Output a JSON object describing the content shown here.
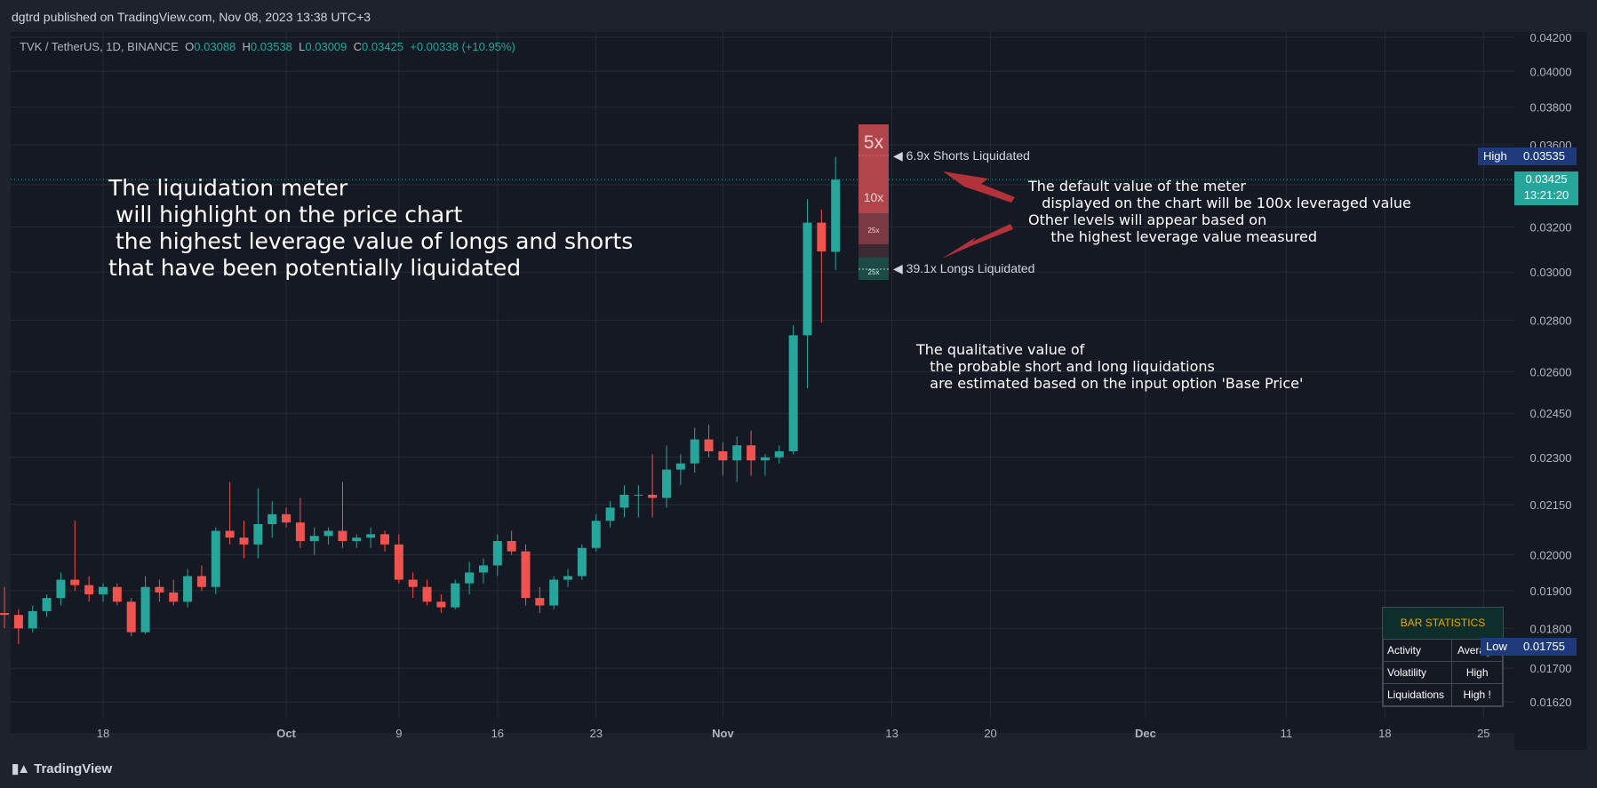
{
  "header": {
    "published": "dgtrd published on TradingView.com, Nov 08, 2023 13:38 UTC+3"
  },
  "footer": {
    "brand": "TradingView",
    "logo_icon": "tradingview-logo-icon"
  },
  "ohlc": {
    "symbol": "TVK / TetherUS, 1D, BINANCE",
    "o_label": "O",
    "o": "0.03088",
    "h_label": "H",
    "h": "0.03538",
    "l_label": "L",
    "l": "0.03009",
    "c_label": "C",
    "c": "0.03425",
    "change": "+0.00338 (+10.95%)"
  },
  "annotations": {
    "main": "The liquidation meter\n will highlight on the price chart\n the highest leverage value of longs and shorts\nthat have been potentially liquidated",
    "default_value": "The default value of the meter\n   displayed on the chart will be 100x leveraged value\nOther levels will appear based on\n     the highest leverage value measured",
    "qualitative": "The qualitative value of\n   the probable short and long liquidations\n   are estimated based on the input option 'Base Price'"
  },
  "meter": {
    "top_label": "5x",
    "mid_label": "10x",
    "small_label_1": "25x",
    "small_label_2": "25x",
    "shorts": "◀ 6.9x Shorts Liquidated",
    "longs": "◀ 39.1x Longs Liquidated"
  },
  "price_tags": {
    "high_label": "High",
    "high_value": "0.03535",
    "last_value": "0.03425",
    "countdown": "13:21:20",
    "low_label": "Low",
    "low_value": "0.01755"
  },
  "bar_statistics": {
    "title": "BAR STATISTICS",
    "rows": [
      {
        "label": "Activity",
        "value": "Average"
      },
      {
        "label": "Volatility",
        "value": "High"
      },
      {
        "label": "Liquidations",
        "value": "High !"
      }
    ]
  },
  "colors": {
    "up": "#26a69a",
    "down": "#ef5350",
    "axis_text": "#b2b5be",
    "grid": "#262a35",
    "meter_red": "#b2444b",
    "high_tag": "#1e3a7a",
    "last_tag": "#26a69a"
  },
  "chart_data": {
    "type": "candlestick",
    "title": "",
    "y_scale": "log",
    "y_ticks": [
      0.0162,
      0.017,
      0.018,
      0.019,
      0.02,
      0.0215,
      0.023,
      0.0245,
      0.026,
      0.028,
      0.03,
      0.032,
      0.034,
      0.036,
      0.038,
      0.04,
      0.042
    ],
    "y_tick_labels": [
      "0.01620",
      "0.01700",
      "0.01800",
      "0.01900",
      "0.02000",
      "0.02150",
      "0.02300",
      "0.02450",
      "0.02600",
      "0.02800",
      "0.03000",
      "0.03200",
      "0.03400",
      "0.03600",
      "0.03800",
      "0.04000",
      "0.04200"
    ],
    "x_tick_labels": [
      "18",
      "Oct",
      "9",
      "16",
      "23",
      "Nov",
      "13",
      "20",
      "Dec",
      "11",
      "18",
      "25"
    ],
    "x_tick_dates": [
      "2023-09-18",
      "2023-10-01",
      "2023-10-09",
      "2023-10-16",
      "2023-10-23",
      "2023-11-01",
      "2023-11-13",
      "2023-11-20",
      "2023-12-01",
      "2023-12-11",
      "2023-12-18",
      "2023-12-25"
    ],
    "candles": [
      {
        "d": "2023-09-11",
        "o": 0.0184,
        "h": 0.0191,
        "l": 0.018,
        "c": 0.01835
      },
      {
        "d": "2023-09-12",
        "o": 0.01835,
        "h": 0.0185,
        "l": 0.0176,
        "c": 0.018
      },
      {
        "d": "2023-09-13",
        "o": 0.018,
        "h": 0.0186,
        "l": 0.0179,
        "c": 0.01845
      },
      {
        "d": "2023-09-14",
        "o": 0.01845,
        "h": 0.0189,
        "l": 0.0183,
        "c": 0.0188
      },
      {
        "d": "2023-09-15",
        "o": 0.0188,
        "h": 0.0195,
        "l": 0.0186,
        "c": 0.0193
      },
      {
        "d": "2023-09-16",
        "o": 0.0193,
        "h": 0.021,
        "l": 0.019,
        "c": 0.01915
      },
      {
        "d": "2023-09-17",
        "o": 0.01915,
        "h": 0.0194,
        "l": 0.0187,
        "c": 0.0189
      },
      {
        "d": "2023-09-18",
        "o": 0.0189,
        "h": 0.0192,
        "l": 0.0187,
        "c": 0.0191
      },
      {
        "d": "2023-09-19",
        "o": 0.0191,
        "h": 0.0192,
        "l": 0.0186,
        "c": 0.0187
      },
      {
        "d": "2023-09-20",
        "o": 0.0187,
        "h": 0.0188,
        "l": 0.0178,
        "c": 0.0179
      },
      {
        "d": "2023-09-21",
        "o": 0.0179,
        "h": 0.0194,
        "l": 0.01785,
        "c": 0.0191
      },
      {
        "d": "2023-09-22",
        "o": 0.0191,
        "h": 0.0193,
        "l": 0.0187,
        "c": 0.01895
      },
      {
        "d": "2023-09-23",
        "o": 0.01895,
        "h": 0.0193,
        "l": 0.0186,
        "c": 0.0187
      },
      {
        "d": "2023-09-24",
        "o": 0.0187,
        "h": 0.0196,
        "l": 0.01855,
        "c": 0.0194
      },
      {
        "d": "2023-09-25",
        "o": 0.0194,
        "h": 0.0197,
        "l": 0.019,
        "c": 0.0191
      },
      {
        "d": "2023-09-26",
        "o": 0.0191,
        "h": 0.0208,
        "l": 0.0189,
        "c": 0.0207
      },
      {
        "d": "2023-09-27",
        "o": 0.0207,
        "h": 0.0222,
        "l": 0.0203,
        "c": 0.0205
      },
      {
        "d": "2023-09-28",
        "o": 0.0205,
        "h": 0.021,
        "l": 0.0199,
        "c": 0.0203
      },
      {
        "d": "2023-09-29",
        "o": 0.0203,
        "h": 0.022,
        "l": 0.0199,
        "c": 0.0209
      },
      {
        "d": "2023-09-30",
        "o": 0.0209,
        "h": 0.0216,
        "l": 0.0205,
        "c": 0.0212
      },
      {
        "d": "2023-10-01",
        "o": 0.0212,
        "h": 0.0214,
        "l": 0.0208,
        "c": 0.02095
      },
      {
        "d": "2023-10-02",
        "o": 0.02095,
        "h": 0.0217,
        "l": 0.0202,
        "c": 0.0204
      },
      {
        "d": "2023-10-03",
        "o": 0.0204,
        "h": 0.0208,
        "l": 0.02,
        "c": 0.02055
      },
      {
        "d": "2023-10-04",
        "o": 0.02055,
        "h": 0.0208,
        "l": 0.0203,
        "c": 0.0207
      },
      {
        "d": "2023-10-05",
        "o": 0.0207,
        "h": 0.0222,
        "l": 0.0202,
        "c": 0.0204
      },
      {
        "d": "2023-10-06",
        "o": 0.0204,
        "h": 0.0206,
        "l": 0.0202,
        "c": 0.0205
      },
      {
        "d": "2023-10-07",
        "o": 0.0205,
        "h": 0.0208,
        "l": 0.0202,
        "c": 0.0206
      },
      {
        "d": "2023-10-08",
        "o": 0.0206,
        "h": 0.0207,
        "l": 0.0201,
        "c": 0.0203
      },
      {
        "d": "2023-10-09",
        "o": 0.0203,
        "h": 0.0206,
        "l": 0.0192,
        "c": 0.0193
      },
      {
        "d": "2023-10-10",
        "o": 0.0193,
        "h": 0.0195,
        "l": 0.0188,
        "c": 0.0191
      },
      {
        "d": "2023-10-11",
        "o": 0.0191,
        "h": 0.0193,
        "l": 0.0186,
        "c": 0.0187
      },
      {
        "d": "2023-10-12",
        "o": 0.0187,
        "h": 0.0189,
        "l": 0.0184,
        "c": 0.01855
      },
      {
        "d": "2023-10-13",
        "o": 0.01855,
        "h": 0.0193,
        "l": 0.0185,
        "c": 0.0192
      },
      {
        "d": "2023-10-14",
        "o": 0.0192,
        "h": 0.0198,
        "l": 0.0189,
        "c": 0.0195
      },
      {
        "d": "2023-10-15",
        "o": 0.0195,
        "h": 0.0199,
        "l": 0.0192,
        "c": 0.0197
      },
      {
        "d": "2023-10-16",
        "o": 0.0197,
        "h": 0.0206,
        "l": 0.0194,
        "c": 0.0204
      },
      {
        "d": "2023-10-17",
        "o": 0.0204,
        "h": 0.0207,
        "l": 0.02,
        "c": 0.0201
      },
      {
        "d": "2023-10-18",
        "o": 0.0201,
        "h": 0.0203,
        "l": 0.0186,
        "c": 0.0188
      },
      {
        "d": "2023-10-19",
        "o": 0.0188,
        "h": 0.0191,
        "l": 0.0184,
        "c": 0.0186
      },
      {
        "d": "2023-10-20",
        "o": 0.0186,
        "h": 0.0194,
        "l": 0.0185,
        "c": 0.0193
      },
      {
        "d": "2023-10-21",
        "o": 0.0193,
        "h": 0.0196,
        "l": 0.0191,
        "c": 0.0194
      },
      {
        "d": "2023-10-22",
        "o": 0.0194,
        "h": 0.0203,
        "l": 0.0193,
        "c": 0.0202
      },
      {
        "d": "2023-10-23",
        "o": 0.0202,
        "h": 0.0212,
        "l": 0.0201,
        "c": 0.021
      },
      {
        "d": "2023-10-24",
        "o": 0.021,
        "h": 0.0216,
        "l": 0.0208,
        "c": 0.0214
      },
      {
        "d": "2023-10-25",
        "o": 0.0214,
        "h": 0.0221,
        "l": 0.0211,
        "c": 0.0218
      },
      {
        "d": "2023-10-26",
        "o": 0.0218,
        "h": 0.0221,
        "l": 0.0211,
        "c": 0.0218
      },
      {
        "d": "2023-10-27",
        "o": 0.0218,
        "h": 0.0231,
        "l": 0.0211,
        "c": 0.0217
      },
      {
        "d": "2023-10-28",
        "o": 0.0217,
        "h": 0.0234,
        "l": 0.0214,
        "c": 0.0226
      },
      {
        "d": "2023-10-29",
        "o": 0.0226,
        "h": 0.0231,
        "l": 0.0221,
        "c": 0.0228
      },
      {
        "d": "2023-10-30",
        "o": 0.0228,
        "h": 0.024,
        "l": 0.0225,
        "c": 0.0236
      },
      {
        "d": "2023-10-31",
        "o": 0.0236,
        "h": 0.0241,
        "l": 0.023,
        "c": 0.0232
      },
      {
        "d": "2023-11-01",
        "o": 0.0232,
        "h": 0.0235,
        "l": 0.0224,
        "c": 0.0229
      },
      {
        "d": "2023-11-02",
        "o": 0.0229,
        "h": 0.0237,
        "l": 0.0222,
        "c": 0.0234
      },
      {
        "d": "2023-11-03",
        "o": 0.0234,
        "h": 0.0239,
        "l": 0.0224,
        "c": 0.0229
      },
      {
        "d": "2023-11-04",
        "o": 0.0229,
        "h": 0.0231,
        "l": 0.0224,
        "c": 0.023
      },
      {
        "d": "2023-11-05",
        "o": 0.023,
        "h": 0.0234,
        "l": 0.0228,
        "c": 0.0232
      },
      {
        "d": "2023-11-06",
        "o": 0.0232,
        "h": 0.0278,
        "l": 0.0231,
        "c": 0.0274
      },
      {
        "d": "2023-11-07",
        "o": 0.0274,
        "h": 0.0333,
        "l": 0.0254,
        "c": 0.0322
      },
      {
        "d": "2023-11-08",
        "o": 0.0322,
        "h": 0.0328,
        "l": 0.0279,
        "c": 0.0309
      },
      {
        "d": "2023-11-09",
        "o": 0.03088,
        "h": 0.03538,
        "l": 0.03009,
        "c": 0.03425
      }
    ]
  }
}
